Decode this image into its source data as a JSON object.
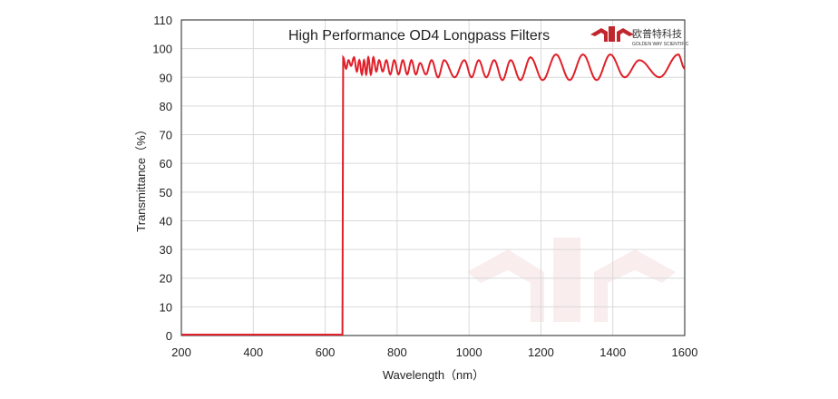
{
  "chart_data": {
    "type": "line",
    "title": "High Performance OD4 Longpass  Filters",
    "xlabel": "Wavelength（nm）",
    "ylabel": "Transmittance（%）",
    "xlim": [
      200,
      1600
    ],
    "ylim": [
      0,
      110
    ],
    "xticks": [
      200,
      400,
      600,
      800,
      1000,
      1200,
      1400,
      1600
    ],
    "yticks": [
      0,
      10,
      20,
      30,
      40,
      50,
      60,
      70,
      80,
      90,
      100,
      110
    ],
    "grid": true,
    "series": [
      {
        "name": "Transmittance",
        "color": "#e0202a",
        "points": [
          [
            200,
            0.3
          ],
          [
            645,
            0.3
          ],
          [
            648,
            0.3
          ],
          [
            650,
            97
          ],
          [
            658,
            93
          ],
          [
            665,
            96
          ],
          [
            672,
            94
          ],
          [
            680,
            97
          ],
          [
            688,
            92
          ],
          [
            695,
            96
          ],
          [
            702,
            91
          ],
          [
            708,
            96
          ],
          [
            714,
            91
          ],
          [
            720,
            97
          ],
          [
            727,
            91
          ],
          [
            734,
            97
          ],
          [
            742,
            92
          ],
          [
            750,
            96
          ],
          [
            760,
            92
          ],
          [
            770,
            96
          ],
          [
            781,
            91
          ],
          [
            792,
            96
          ],
          [
            804,
            91
          ],
          [
            816,
            96
          ],
          [
            828,
            91
          ],
          [
            840,
            96
          ],
          [
            852,
            91
          ],
          [
            864,
            95
          ],
          [
            880,
            91
          ],
          [
            896,
            96
          ],
          [
            914,
            90
          ],
          [
            931,
            96
          ],
          [
            960,
            90
          ],
          [
            987,
            96
          ],
          [
            1007,
            90
          ],
          [
            1027,
            96
          ],
          [
            1048,
            90
          ],
          [
            1070,
            96
          ],
          [
            1093,
            89
          ],
          [
            1116,
            96
          ],
          [
            1143,
            89
          ],
          [
            1171,
            97
          ],
          [
            1205,
            89
          ],
          [
            1242,
            98
          ],
          [
            1280,
            89
          ],
          [
            1317,
            98
          ],
          [
            1355,
            89
          ],
          [
            1393,
            98
          ],
          [
            1433,
            90
          ],
          [
            1474,
            96
          ],
          [
            1530,
            90
          ],
          [
            1582,
            98
          ],
          [
            1600,
            93
          ]
        ]
      }
    ]
  },
  "logo": {
    "name_cn": "欧普特科技",
    "name_en": "GOLDEN WAY SCIENTIFIC",
    "color": "#c0272d"
  }
}
